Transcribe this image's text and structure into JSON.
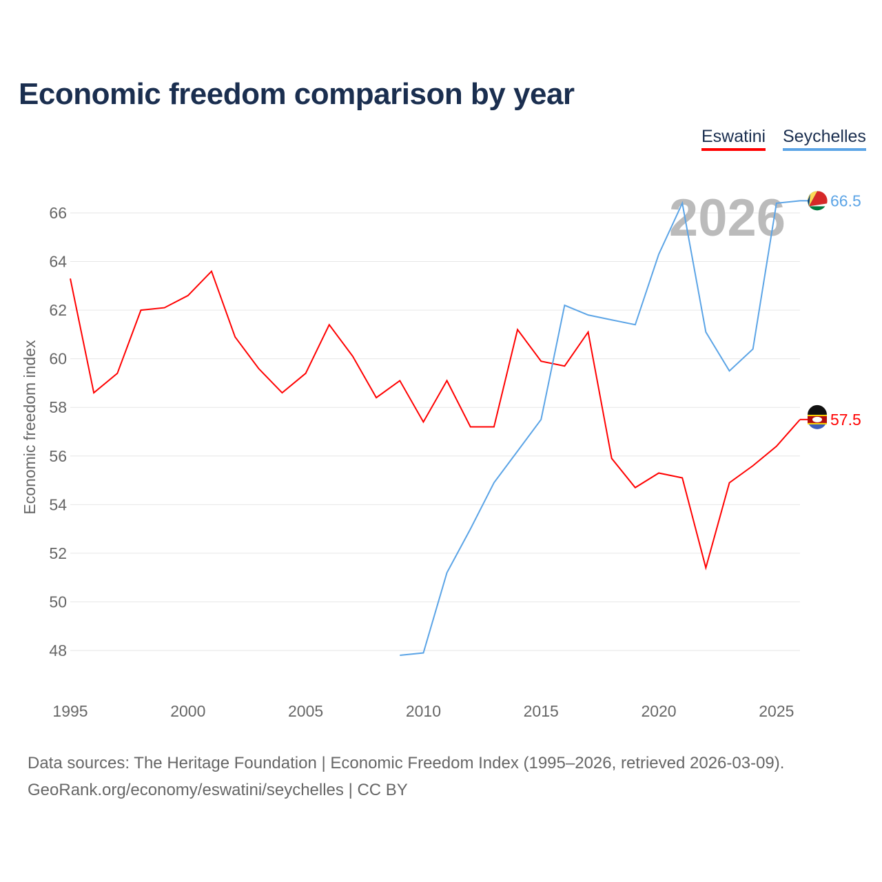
{
  "title": "Economic freedom comparison by year",
  "source_line1": "Data sources: The Heritage Foundation | Economic Freedom Index (1995–2026, retrieved 2026-03-09).",
  "source_line2": "GeoRank.org/economy/eswatini/seychelles | CC BY",
  "chart_data": {
    "type": "line",
    "title": "Economic freedom comparison by year",
    "ylabel": "Economic freedom index",
    "xlabel": "",
    "xlim": [
      1995,
      2026
    ],
    "ylim": [
      46.5,
      67.5
    ],
    "yticks": [
      48,
      50,
      52,
      54,
      56,
      58,
      60,
      62,
      64,
      66
    ],
    "xticks": [
      1995,
      2000,
      2005,
      2010,
      2015,
      2020,
      2025
    ],
    "grid": true,
    "legend": "top-right",
    "year_watermark": "2026",
    "series": [
      {
        "name": "Eswatini",
        "color": "#ff0000",
        "end_label": "57.5",
        "x": [
          1995,
          1996,
          1997,
          1998,
          1999,
          2000,
          2001,
          2002,
          2003,
          2004,
          2005,
          2006,
          2007,
          2008,
          2009,
          2010,
          2011,
          2012,
          2013,
          2014,
          2015,
          2016,
          2017,
          2018,
          2019,
          2020,
          2021,
          2022,
          2023,
          2024,
          2025,
          2026
        ],
        "values": [
          63.3,
          58.6,
          59.4,
          62.0,
          62.1,
          62.6,
          63.6,
          60.9,
          59.6,
          58.6,
          59.4,
          61.4,
          60.1,
          58.4,
          59.1,
          57.4,
          59.1,
          57.2,
          57.2,
          61.2,
          59.9,
          59.7,
          61.1,
          55.9,
          54.7,
          55.3,
          55.1,
          51.4,
          54.9,
          55.6,
          56.4,
          57.5
        ]
      },
      {
        "name": "Seychelles",
        "color": "#5ba4e6",
        "end_label": "66.5",
        "x": [
          2009,
          2010,
          2011,
          2012,
          2013,
          2014,
          2015,
          2016,
          2017,
          2018,
          2019,
          2020,
          2021,
          2022,
          2023,
          2024,
          2025,
          2026
        ],
        "values": [
          47.8,
          47.9,
          51.2,
          53.0,
          54.9,
          56.2,
          57.5,
          62.2,
          61.8,
          61.6,
          61.4,
          64.3,
          66.4,
          61.1,
          59.5,
          60.4,
          66.4,
          66.5
        ]
      }
    ]
  }
}
